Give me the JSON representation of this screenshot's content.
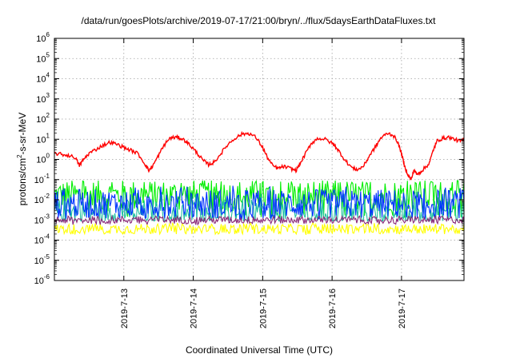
{
  "chart_data": {
    "type": "line",
    "title": "/data/run/goesPlots/archive/2019-07-17/21:00/bryn/../flux/5daysEarthDataFluxes.txt",
    "xlabel": "Coordinated Universal Time (UTC)",
    "ylabel": "protons/cm2-s-sr-MeV",
    "ylabel_parts": {
      "pre": "protons/cm",
      "sup": "2",
      "post": "-s-sr-MeV"
    },
    "x_ticks": [
      "2019-7-13",
      "2019-7-14",
      "2019-7-15",
      "2019-7-16",
      "2019-7-17"
    ],
    "x_tick_day_offsets": [
      1,
      2,
      3,
      4,
      5
    ],
    "xlim_days_from_2019_7_12": [
      0,
      5.9
    ],
    "y_scale": "log",
    "ylim": [
      1e-06,
      1000000.0
    ],
    "y_tick_exponents": [
      -6,
      -5,
      -4,
      -3,
      -2,
      -1,
      0,
      1,
      2,
      3,
      4,
      5,
      6
    ],
    "grid": true,
    "series": [
      {
        "color": "#00ee00",
        "style": "noisy",
        "band_log10": [
          -2.9,
          -1.05
        ],
        "mean_log10": -1.8
      },
      {
        "color": "#20c0a0",
        "style": "noisy",
        "band_log10": [
          -3.05,
          -1.6
        ],
        "mean_log10": -2.6
      },
      {
        "color": "#0033ff",
        "style": "noisy",
        "band_log10": [
          -3.0,
          -1.3
        ],
        "mean_log10": -2.2
      },
      {
        "color": "#8a2a7a",
        "style": "noisy",
        "band_log10": [
          -3.25,
          -2.8
        ],
        "mean_log10": -3.0
      },
      {
        "color": "#ffff00",
        "style": "noisy",
        "band_log10": [
          -3.75,
          -3.15
        ],
        "mean_log10": -3.45
      },
      {
        "color": "#ff0000",
        "style": "trace",
        "points": [
          [
            0.0,
            0.3
          ],
          [
            0.1,
            0.25
          ],
          [
            0.2,
            0.2
          ],
          [
            0.3,
            0.1
          ],
          [
            0.36,
            -0.3
          ],
          [
            0.42,
            0.0
          ],
          [
            0.5,
            0.3
          ],
          [
            0.6,
            0.5
          ],
          [
            0.7,
            0.7
          ],
          [
            0.8,
            0.85
          ],
          [
            0.9,
            0.75
          ],
          [
            1.0,
            0.6
          ],
          [
            1.1,
            0.45
          ],
          [
            1.2,
            0.3
          ],
          [
            1.3,
            -0.2
          ],
          [
            1.36,
            -0.55
          ],
          [
            1.42,
            -0.3
          ],
          [
            1.5,
            0.2
          ],
          [
            1.58,
            0.7
          ],
          [
            1.66,
            1.05
          ],
          [
            1.74,
            1.1
          ],
          [
            1.82,
            1.05
          ],
          [
            1.9,
            0.9
          ],
          [
            1.98,
            0.6
          ],
          [
            2.06,
            0.3
          ],
          [
            2.14,
            -0.05
          ],
          [
            2.22,
            -0.25
          ],
          [
            2.3,
            -0.15
          ],
          [
            2.4,
            0.3
          ],
          [
            2.5,
            0.75
          ],
          [
            2.6,
            1.05
          ],
          [
            2.7,
            1.25
          ],
          [
            2.8,
            1.3
          ],
          [
            2.9,
            1.1
          ],
          [
            3.0,
            0.6
          ],
          [
            3.06,
            0.15
          ],
          [
            3.14,
            -0.3
          ],
          [
            3.22,
            -0.45
          ],
          [
            3.3,
            -0.35
          ],
          [
            3.4,
            -0.45
          ],
          [
            3.48,
            -0.55
          ],
          [
            3.54,
            -0.2
          ],
          [
            3.62,
            0.3
          ],
          [
            3.7,
            0.8
          ],
          [
            3.8,
            1.05
          ],
          [
            3.9,
            1.0
          ],
          [
            4.0,
            0.8
          ],
          [
            4.06,
            0.6
          ],
          [
            4.12,
            0.3
          ],
          [
            4.2,
            -0.1
          ],
          [
            4.3,
            -0.45
          ],
          [
            4.38,
            -0.5
          ],
          [
            4.46,
            -0.3
          ],
          [
            4.54,
            0.2
          ],
          [
            4.62,
            0.6
          ],
          [
            4.7,
            1.05
          ],
          [
            4.8,
            1.3
          ],
          [
            4.88,
            1.2
          ],
          [
            4.94,
            0.9
          ],
          [
            5.0,
            0.3
          ],
          [
            5.04,
            -0.3
          ],
          [
            5.1,
            -0.8
          ],
          [
            5.14,
            -1.0
          ],
          [
            5.18,
            -0.5
          ],
          [
            5.22,
            -0.75
          ],
          [
            5.28,
            -0.6
          ],
          [
            5.34,
            -0.4
          ],
          [
            5.4,
            -0.2
          ],
          [
            5.46,
            0.5
          ],
          [
            5.52,
            0.95
          ],
          [
            5.6,
            1.05
          ],
          [
            5.68,
            1.1
          ],
          [
            5.76,
            1.0
          ],
          [
            5.84,
            0.9
          ],
          [
            5.9,
            0.95
          ]
        ]
      }
    ]
  }
}
